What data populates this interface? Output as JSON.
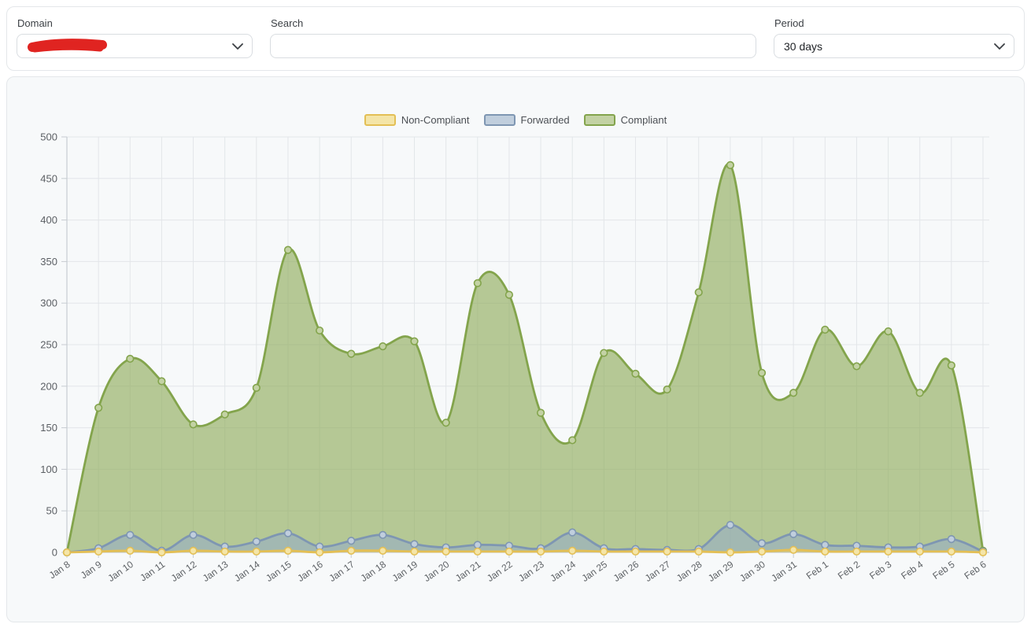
{
  "filter_bar": {
    "domain": {
      "label": "Domain",
      "value": "",
      "value_redacted_by_scribble": true,
      "scribble_color": "#E02421"
    },
    "search": {
      "label": "Search",
      "value": "",
      "placeholder": ""
    },
    "period": {
      "label": "Period",
      "value": "30 days"
    }
  },
  "chart_data": {
    "type": "area",
    "title": "",
    "xlabel": "",
    "ylabel": "",
    "ylim": [
      0,
      500
    ],
    "ytick_step": 50,
    "grid": true,
    "legend_position": "top-center",
    "x": [
      "Jan 8",
      "Jan 9",
      "Jan 10",
      "Jan 11",
      "Jan 12",
      "Jan 13",
      "Jan 14",
      "Jan 15",
      "Jan 16",
      "Jan 17",
      "Jan 18",
      "Jan 19",
      "Jan 20",
      "Jan 21",
      "Jan 22",
      "Jan 23",
      "Jan 24",
      "Jan 25",
      "Jan 26",
      "Jan 27",
      "Jan 28",
      "Jan 29",
      "Jan 30",
      "Jan 31",
      "Feb 1",
      "Feb 2",
      "Feb 3",
      "Feb 4",
      "Feb 5",
      "Feb 6"
    ],
    "series": [
      {
        "name": "Non-Compliant",
        "line_color": "#E3BF55",
        "fill_color": "rgba(240,212,116,0.55)",
        "marker_fill": "#F4E5A8",
        "values": [
          0,
          1,
          2,
          0,
          2,
          1,
          1,
          2,
          0,
          2,
          2,
          1,
          1,
          1,
          1,
          1,
          2,
          1,
          1,
          1,
          1,
          0,
          1,
          3,
          1,
          1,
          1,
          1,
          1,
          0
        ]
      },
      {
        "name": "Forwarded",
        "line_color": "#7E96B2",
        "fill_color": "rgba(150,173,198,0.60)",
        "marker_fill": "#C0CEDD",
        "values": [
          0,
          5,
          21,
          2,
          21,
          7,
          13,
          23,
          7,
          14,
          21,
          10,
          6,
          9,
          8,
          5,
          24,
          5,
          4,
          3,
          4,
          33,
          11,
          22,
          9,
          8,
          6,
          7,
          16,
          1
        ]
      },
      {
        "name": "Compliant",
        "line_color": "#83A44C",
        "fill_color": "rgba(140,169,87,0.62)",
        "marker_fill": "#C3D2A4",
        "values": [
          0,
          174,
          233,
          206,
          154,
          166,
          198,
          364,
          267,
          239,
          248,
          254,
          156,
          324,
          310,
          168,
          135,
          240,
          215,
          196,
          313,
          466,
          216,
          192,
          268,
          224,
          266,
          192,
          225,
          2
        ]
      }
    ],
    "axis": {
      "grid_color": "#E3E6E9",
      "tick_color": "#C7CCD1",
      "axis_color": "#C7CCD1",
      "y_label_color": "#5B5F64",
      "x_label_color": "#5F6367"
    }
  }
}
